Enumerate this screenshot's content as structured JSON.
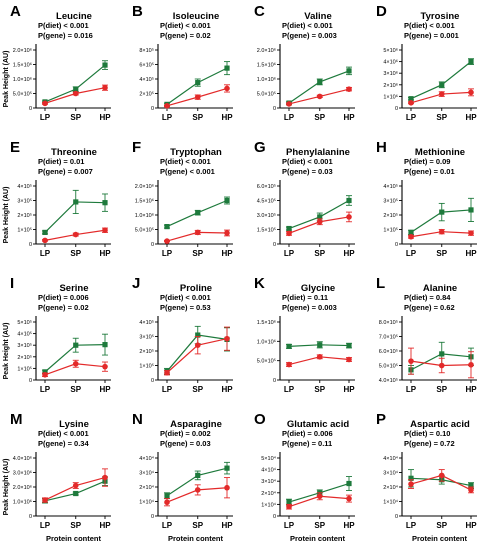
{
  "colors": {
    "gene_a": "#1e7a3c",
    "gene_b": "#e32a2a",
    "axis": "#000000"
  },
  "y_axis_title": "Peak Height (AU)",
  "x_axis_title": "Protein content",
  "chart_data": [
    {
      "type": "line",
      "letter": "A",
      "title": "Leucine",
      "stat_diet": "P(diet) < 0.001",
      "stat_gene": "P(gene) = 0.016",
      "categories": [
        "LP",
        "SP",
        "HP"
      ],
      "y_ticks": [
        "0",
        "5.0×10⁵",
        "1.0×10⁶",
        "1.5×10⁶",
        "2.0×10⁶"
      ],
      "ylim": [
        0,
        2000000
      ],
      "series": [
        {
          "values": [
            210000,
            650000,
            1480000
          ],
          "errors": [
            30000,
            80000,
            150000
          ]
        },
        {
          "values": [
            160000,
            500000,
            700000
          ],
          "errors": [
            30000,
            50000,
            90000
          ]
        }
      ]
    },
    {
      "type": "line",
      "letter": "B",
      "title": "Isoleucine",
      "stat_diet": "P(diet) < 0.001",
      "stat_gene": "P(gene) = 0.02",
      "categories": [
        "LP",
        "SP",
        "HP"
      ],
      "y_ticks": [
        "0",
        "2×10⁵",
        "4×10⁵",
        "6×10⁵",
        "8×10⁵"
      ],
      "ylim": [
        0,
        800000
      ],
      "series": [
        {
          "values": [
            50000,
            350000,
            550000
          ],
          "errors": [
            15000,
            50000,
            90000
          ]
        },
        {
          "values": [
            30000,
            150000,
            270000
          ],
          "errors": [
            10000,
            30000,
            50000
          ]
        }
      ]
    },
    {
      "type": "line",
      "letter": "C",
      "title": "Valine",
      "stat_diet": "P(diet) < 0.001",
      "stat_gene": "P(gene) = 0.003",
      "categories": [
        "LP",
        "SP",
        "HP"
      ],
      "y_ticks": [
        "0",
        "5.0×10⁵",
        "1.0×10⁶",
        "1.5×10⁶",
        "2.0×10⁶"
      ],
      "ylim": [
        0,
        2000000
      ],
      "series": [
        {
          "values": [
            170000,
            900000,
            1280000
          ],
          "errors": [
            40000,
            100000,
            130000
          ]
        },
        {
          "values": [
            140000,
            400000,
            650000
          ],
          "errors": [
            30000,
            40000,
            60000
          ]
        }
      ]
    },
    {
      "type": "line",
      "letter": "D",
      "title": "Tyrosine",
      "stat_diet": "P(diet) < 0.001",
      "stat_gene": "P(gene) = 0.001",
      "categories": [
        "LP",
        "SP",
        "HP"
      ],
      "y_ticks": [
        "0",
        "1×10⁶",
        "2×10⁶",
        "3×10⁶",
        "4×10⁶",
        "5×10⁶"
      ],
      "ylim": [
        0,
        5000000
      ],
      "series": [
        {
          "values": [
            800000,
            2000000,
            4000000
          ],
          "errors": [
            100000,
            250000,
            250000
          ]
        },
        {
          "values": [
            450000,
            1200000,
            1350000
          ],
          "errors": [
            80000,
            200000,
            300000
          ]
        }
      ]
    },
    {
      "type": "line",
      "letter": "E",
      "title": "Threonine",
      "stat_diet": "P(diet) = 0.01",
      "stat_gene": "P(gene) = 0.007",
      "categories": [
        "LP",
        "SP",
        "HP"
      ],
      "y_ticks": [
        "0",
        "1×10⁵",
        "2×10⁵",
        "3×10⁵",
        "4×10⁵"
      ],
      "ylim": [
        0,
        400000
      ],
      "series": [
        {
          "values": [
            80000,
            290000,
            285000
          ],
          "errors": [
            10000,
            80000,
            60000
          ]
        },
        {
          "values": [
            25000,
            65000,
            95000
          ],
          "errors": [
            5000,
            10000,
            15000
          ]
        }
      ]
    },
    {
      "type": "line",
      "letter": "F",
      "title": "Tryptophan",
      "stat_diet": "P(diet) < 0.001",
      "stat_gene": "P(gene) < 0.001",
      "categories": [
        "LP",
        "SP",
        "HP"
      ],
      "y_ticks": [
        "0",
        "5.0×10⁵",
        "1.0×10⁶",
        "1.5×10⁶",
        "2.0×10⁶"
      ],
      "ylim": [
        0,
        2000000
      ],
      "series": [
        {
          "values": [
            600000,
            1080000,
            1500000
          ],
          "errors": [
            50000,
            80000,
            120000
          ]
        },
        {
          "values": [
            100000,
            400000,
            380000
          ],
          "errors": [
            20000,
            70000,
            100000
          ]
        }
      ]
    },
    {
      "type": "line",
      "letter": "G",
      "title": "Phenylalanine",
      "stat_diet": "P(diet) < 0.001",
      "stat_gene": "P(gene) = 0.03",
      "categories": [
        "LP",
        "SP",
        "HP"
      ],
      "y_ticks": [
        "0",
        "1.5×10⁵",
        "3.0×10⁵",
        "4.5×10⁵",
        "6.0×10⁵"
      ],
      "ylim": [
        0,
        600000
      ],
      "series": [
        {
          "values": [
            160000,
            280000,
            450000
          ],
          "errors": [
            15000,
            40000,
            50000
          ]
        },
        {
          "values": [
            110000,
            230000,
            280000
          ],
          "errors": [
            20000,
            30000,
            50000
          ]
        }
      ]
    },
    {
      "type": "line",
      "letter": "H",
      "title": "Methionine",
      "stat_diet": "P(diet) = 0.09",
      "stat_gene": "P(gene) = 0.01",
      "categories": [
        "LP",
        "SP",
        "HP"
      ],
      "y_ticks": [
        "0",
        "1×10⁵",
        "2×10⁵",
        "3×10⁵",
        "4×10⁵"
      ],
      "ylim": [
        0,
        400000
      ],
      "series": [
        {
          "values": [
            80000,
            220000,
            235000
          ],
          "errors": [
            15000,
            60000,
            80000
          ]
        },
        {
          "values": [
            50000,
            85000,
            75000
          ],
          "errors": [
            10000,
            15000,
            15000
          ]
        }
      ]
    },
    {
      "type": "line",
      "letter": "I",
      "title": "Serine",
      "stat_diet": "P(diet) = 0.006",
      "stat_gene": "P(gene) = 0.02",
      "categories": [
        "LP",
        "SP",
        "HP"
      ],
      "y_ticks": [
        "0",
        "1×10⁵",
        "2×10⁵",
        "3×10⁵",
        "4×10⁵",
        "5×10⁵"
      ],
      "ylim": [
        0,
        500000
      ],
      "series": [
        {
          "values": [
            70000,
            300000,
            305000
          ],
          "errors": [
            15000,
            60000,
            90000
          ]
        },
        {
          "values": [
            45000,
            140000,
            115000
          ],
          "errors": [
            15000,
            30000,
            40000
          ]
        }
      ]
    },
    {
      "type": "line",
      "letter": "J",
      "title": "Proline",
      "stat_diet": "P(diet) < 0.001",
      "stat_gene": "P(gene) = 0.53",
      "categories": [
        "LP",
        "SP",
        "HP"
      ],
      "y_ticks": [
        "0",
        "1×10⁵",
        "2×10⁵",
        "3×10⁵",
        "4×10⁵"
      ],
      "ylim": [
        0,
        400000
      ],
      "series": [
        {
          "values": [
            60000,
            310000,
            280000
          ],
          "errors": [
            20000,
            60000,
            80000
          ]
        },
        {
          "values": [
            50000,
            240000,
            285000
          ],
          "errors": [
            15000,
            60000,
            80000
          ]
        }
      ]
    },
    {
      "type": "line",
      "letter": "K",
      "title": "Glycine",
      "stat_diet": "P(diet) = 0.11",
      "stat_gene": "P(gene) = 0.003",
      "categories": [
        "LP",
        "SP",
        "HP"
      ],
      "y_ticks": [
        "0",
        "5.0×10⁵",
        "1.0×10⁶",
        "1.5×10⁶"
      ],
      "ylim": [
        0,
        1500000
      ],
      "series": [
        {
          "values": [
            870000,
            910000,
            890000
          ],
          "errors": [
            50000,
            80000,
            60000
          ]
        },
        {
          "values": [
            400000,
            600000,
            530000
          ],
          "errors": [
            50000,
            50000,
            50000
          ]
        }
      ]
    },
    {
      "type": "line",
      "letter": "L",
      "title": "Alanine",
      "stat_diet": "P(diet) = 0.84",
      "stat_gene": "P(gene) = 0.62",
      "categories": [
        "LP",
        "SP",
        "HP"
      ],
      "y_ticks": [
        "4.0×10⁵",
        "5.0×10⁵",
        "6.0×10⁵",
        "7.0×10⁵",
        "8.0×10⁵"
      ],
      "ylim": [
        400000,
        800000
      ],
      "series": [
        {
          "values": [
            470000,
            580000,
            560000
          ],
          "errors": [
            30000,
            80000,
            60000
          ]
        },
        {
          "values": [
            530000,
            500000,
            505000
          ],
          "errors": [
            90000,
            50000,
            90000
          ]
        }
      ]
    },
    {
      "type": "line",
      "letter": "M",
      "title": "Lysine",
      "stat_diet": "P(diet) < 0.001",
      "stat_gene": "P(gene) = 0.34",
      "categories": [
        "LP",
        "SP",
        "HP"
      ],
      "y_ticks": [
        "0",
        "1.0×10⁶",
        "2.0×10⁶",
        "3.0×10⁶",
        "4.0×10⁶"
      ],
      "ylim": [
        0,
        4000000
      ],
      "series": [
        {
          "values": [
            1050000,
            1550000,
            2400000
          ],
          "errors": [
            150000,
            100000,
            300000
          ]
        },
        {
          "values": [
            1100000,
            2100000,
            2650000
          ],
          "errors": [
            150000,
            200000,
            600000
          ]
        }
      ]
    },
    {
      "type": "line",
      "letter": "N",
      "title": "Asparagine",
      "stat_diet": "P(diet) = 0.002",
      "stat_gene": "P(gene) = 0.03",
      "categories": [
        "LP",
        "SP",
        "HP"
      ],
      "y_ticks": [
        "0",
        "1×10⁴",
        "2×10⁴",
        "3×10⁴",
        "4×10⁴"
      ],
      "ylim": [
        0,
        40000
      ],
      "series": [
        {
          "values": [
            14000,
            28000,
            33000
          ],
          "errors": [
            2000,
            3000,
            4000
          ]
        },
        {
          "values": [
            9500,
            18000,
            19500
          ],
          "errors": [
            2500,
            3500,
            7000
          ]
        }
      ]
    },
    {
      "type": "line",
      "letter": "O",
      "title": "Glutamic acid",
      "stat_diet": "P(diet) = 0.006",
      "stat_gene": "P(gene) = 0.11",
      "categories": [
        "LP",
        "SP",
        "HP"
      ],
      "y_ticks": [
        "0",
        "1×10⁴",
        "2×10⁴",
        "3×10⁴",
        "4×10⁴",
        "5×10⁴"
      ],
      "ylim": [
        0,
        50000
      ],
      "series": [
        {
          "values": [
            12000,
            20000,
            28000
          ],
          "errors": [
            2500,
            2500,
            6000
          ]
        },
        {
          "values": [
            8000,
            17000,
            15000
          ],
          "errors": [
            2000,
            3000,
            3000
          ]
        }
      ]
    },
    {
      "type": "line",
      "letter": "P",
      "title": "Aspartic acid",
      "stat_diet": "P(diet) = 0.10",
      "stat_gene": "P(gene) = 0.72",
      "categories": [
        "LP",
        "SP",
        "HP"
      ],
      "y_ticks": [
        "0",
        "1×10⁴",
        "2×10⁴",
        "3×10⁴",
        "4×10⁴"
      ],
      "ylim": [
        0,
        40000
      ],
      "series": [
        {
          "values": [
            26000,
            25000,
            21000
          ],
          "errors": [
            6000,
            3000,
            2000
          ]
        },
        {
          "values": [
            22000,
            28000,
            18000
          ],
          "errors": [
            3000,
            4000,
            2000
          ]
        }
      ]
    }
  ]
}
